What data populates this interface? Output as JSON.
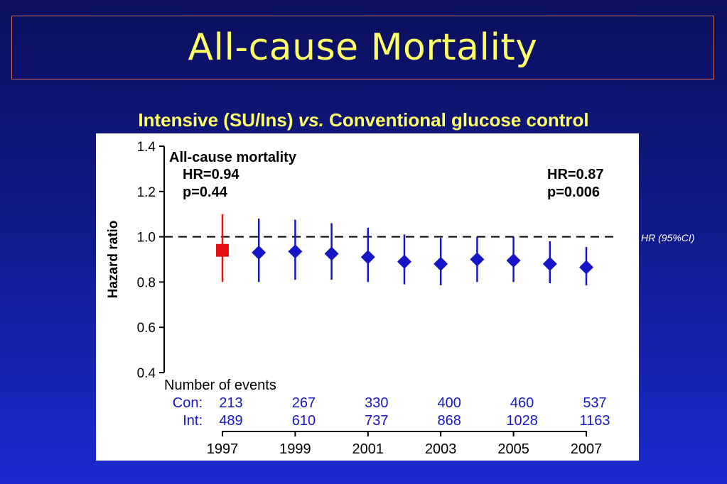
{
  "slide": {
    "title": "All-cause Mortality",
    "subtitle_part1": "Intensive (SU/Ins) ",
    "subtitle_vs": "vs.",
    "subtitle_part2": " Conventional glucose control",
    "side_note": "HR (95%CI)"
  },
  "chart_data": {
    "type": "scatter",
    "panel_title": "All-cause mortality",
    "ylabel": "Hazard ratio",
    "ylim": [
      0.4,
      1.4
    ],
    "yticks": [
      "1.4",
      "1.2",
      "1.0",
      "0.8",
      "0.6",
      "0.4"
    ],
    "xlim": [
      1997,
      2007
    ],
    "xticks": [
      "1997",
      "1999",
      "2001",
      "2003",
      "2005",
      "2007"
    ],
    "reference_line": 1.0,
    "annotations": {
      "left_hr": "HR=0.94",
      "left_p": "p=0.44",
      "right_hr": "HR=0.87",
      "right_p": "p=0.006"
    },
    "colors": {
      "first": "#e81010",
      "rest": "#1616c8"
    },
    "points": [
      {
        "x": 1997,
        "hr": 0.94,
        "lo": 0.8,
        "hi": 1.1,
        "marker": "square"
      },
      {
        "x": 1998,
        "hr": 0.93,
        "lo": 0.8,
        "hi": 1.08,
        "marker": "diamond"
      },
      {
        "x": 1999,
        "hr": 0.935,
        "lo": 0.81,
        "hi": 1.075,
        "marker": "diamond"
      },
      {
        "x": 2000,
        "hr": 0.925,
        "lo": 0.81,
        "hi": 1.06,
        "marker": "diamond"
      },
      {
        "x": 2001,
        "hr": 0.91,
        "lo": 0.8,
        "hi": 1.04,
        "marker": "diamond"
      },
      {
        "x": 2002,
        "hr": 0.89,
        "lo": 0.79,
        "hi": 1.01,
        "marker": "diamond"
      },
      {
        "x": 2003,
        "hr": 0.88,
        "lo": 0.785,
        "hi": 0.995,
        "marker": "diamond"
      },
      {
        "x": 2004,
        "hr": 0.9,
        "lo": 0.8,
        "hi": 1.0,
        "marker": "diamond"
      },
      {
        "x": 2005,
        "hr": 0.895,
        "lo": 0.8,
        "hi": 1.0,
        "marker": "diamond"
      },
      {
        "x": 2006,
        "hr": 0.88,
        "lo": 0.795,
        "hi": 0.98,
        "marker": "diamond"
      },
      {
        "x": 2007,
        "hr": 0.865,
        "lo": 0.785,
        "hi": 0.955,
        "marker": "diamond"
      }
    ],
    "events": {
      "heading": "Number of events",
      "con_label": "Con:",
      "int_label": "Int:",
      "years": [
        1997,
        1999,
        2001,
        2003,
        2005,
        2007
      ],
      "con": [
        "213",
        "267",
        "330",
        "400",
        "460",
        "537"
      ],
      "int": [
        "489",
        "610",
        "737",
        "868",
        "1028",
        "1163"
      ]
    }
  }
}
